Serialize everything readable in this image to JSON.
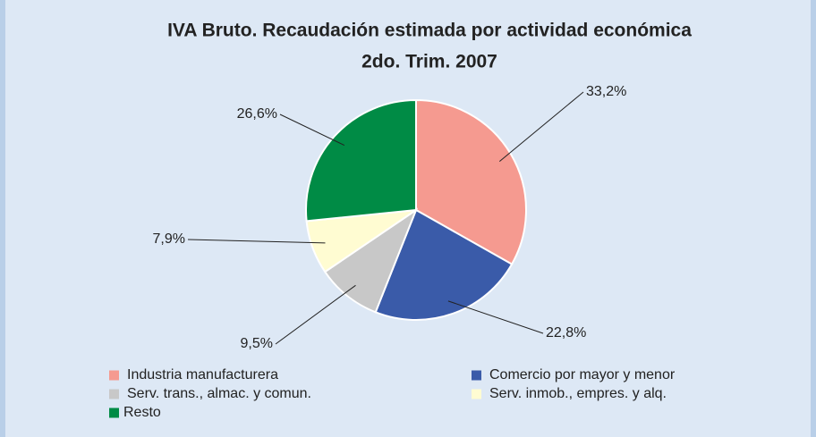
{
  "chart_data": {
    "type": "pie",
    "title": "IVA Bruto. Recaudación estimada por actividad económica",
    "subtitle": "2do. Trim. 2007",
    "categories": [
      "Industria manufacturera",
      "Comercio por mayor y menor",
      "Serv. trans., almac. y comun.",
      "Serv. inmob., empres. y alq.",
      "Resto"
    ],
    "values": [
      33.2,
      22.8,
      9.5,
      7.9,
      26.6
    ],
    "value_labels": [
      "33,2%",
      "22,8%",
      "9,5%",
      "7,9%",
      "26,6%"
    ],
    "colors": [
      "#f59a90",
      "#3a5ba9",
      "#c8c8c8",
      "#fffcd2",
      "#008b45"
    ],
    "legend": "bottom"
  }
}
